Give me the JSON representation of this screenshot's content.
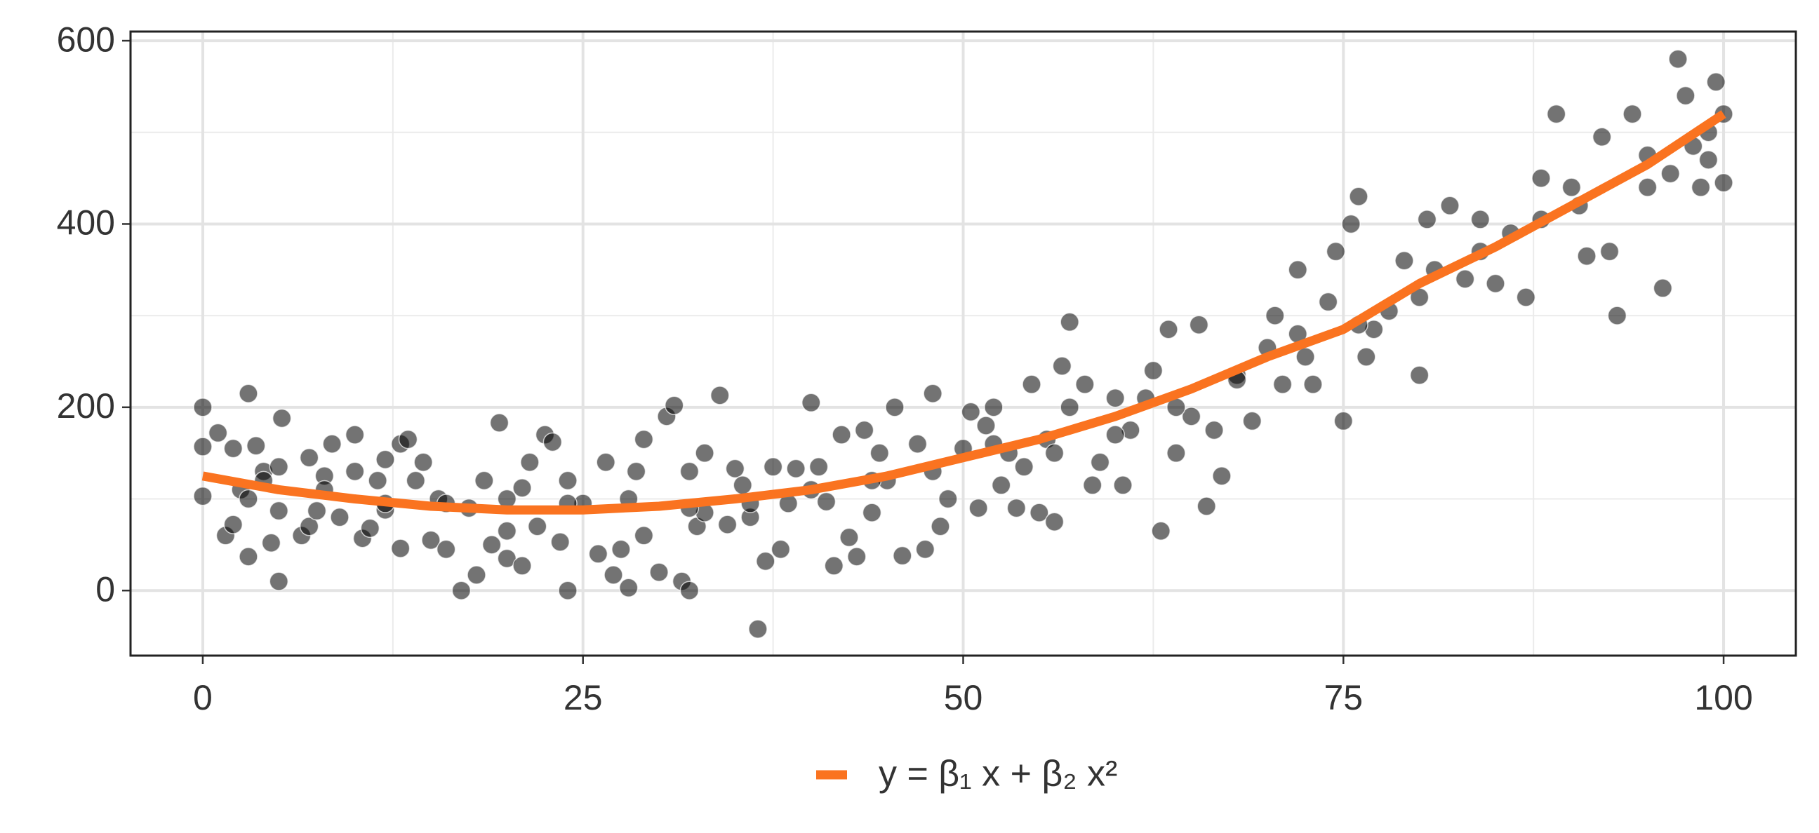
{
  "chart_data": {
    "type": "scatter",
    "xlim": [
      -4.75,
      104.75
    ],
    "ylim": [
      -71,
      610
    ],
    "xticks": [
      0,
      25,
      50,
      75,
      100
    ],
    "yticks": [
      0,
      200,
      400,
      600
    ],
    "grid": true,
    "legend": "bottom",
    "series": [
      {
        "type": "scatter",
        "color": "#000000",
        "x": [
          0,
          0,
          0,
          1,
          1.5,
          2,
          2,
          2.5,
          3,
          3,
          3,
          3.5,
          4,
          4.5,
          5,
          5,
          5,
          5.2,
          6.5,
          7,
          7,
          7.5,
          8,
          8.5,
          9,
          10,
          10,
          10.5,
          11,
          11.5,
          12,
          12,
          13,
          13,
          13.5,
          14,
          14.5,
          15,
          15.5,
          16,
          17,
          17.5,
          18,
          18.5,
          19,
          19.5,
          20,
          20,
          21,
          21,
          21.5,
          22,
          22.5,
          23,
          23.5,
          24,
          24,
          25,
          26,
          26.5,
          27,
          27.5,
          28,
          28.5,
          29,
          29,
          30,
          30.5,
          31,
          31.5,
          32,
          32,
          32.5,
          33,
          33,
          34,
          34.5,
          35,
          35.5,
          36,
          36.5,
          37,
          37.5,
          38,
          38.5,
          39,
          40,
          40.5,
          41,
          41.5,
          42,
          42.5,
          43,
          43.5,
          44,
          44.5,
          45,
          45.5,
          46,
          47,
          47.5,
          48,
          48.5,
          49,
          50,
          50.5,
          51,
          51.5,
          52,
          52.5,
          53,
          53.5,
          54,
          54.5,
          55,
          55.5,
          56,
          56.5,
          57,
          57,
          58,
          58.5,
          59,
          60,
          60.5,
          61,
          62,
          62.5,
          63,
          63.5,
          64,
          65,
          65.5,
          66,
          66.5,
          67,
          68,
          69,
          70,
          70.5,
          71,
          72,
          72.5,
          73,
          74,
          74.5,
          75,
          75.5,
          76,
          76.5,
          77,
          78,
          79,
          80,
          80.5,
          81,
          82,
          83,
          84,
          85,
          86,
          87,
          88,
          89,
          90,
          90.5,
          91,
          92,
          92.5,
          93,
          94,
          95,
          96,
          96.5,
          97,
          97.5,
          98,
          98.5,
          99,
          99.5,
          100,
          100,
          99,
          95,
          88,
          84,
          80,
          76,
          72,
          68,
          64,
          60,
          56,
          52,
          48,
          44,
          40,
          36,
          32,
          28,
          24,
          20,
          16,
          12,
          8,
          4
        ],
        "values": [
          200,
          157,
          103,
          172,
          60,
          155,
          72,
          110,
          37,
          215,
          100,
          158,
          130,
          52,
          135,
          87,
          10,
          188,
          60,
          145,
          70,
          87,
          125,
          160,
          80,
          170,
          130,
          57,
          68,
          120,
          88,
          143,
          160,
          46,
          165,
          120,
          140,
          55,
          100,
          45,
          0,
          90,
          17,
          120,
          50,
          183,
          35,
          65,
          27,
          112,
          140,
          70,
          170,
          162,
          53,
          0,
          120,
          95,
          40,
          140,
          17,
          45,
          3,
          130,
          60,
          165,
          20,
          190,
          202,
          10,
          0,
          130,
          70,
          150,
          85,
          213,
          72,
          133,
          115,
          80,
          -42,
          32,
          135,
          45,
          95,
          133,
          205,
          135,
          97,
          27,
          170,
          58,
          37,
          175,
          85,
          150,
          120,
          200,
          38,
          160,
          45,
          215,
          70,
          100,
          155,
          195,
          90,
          180,
          200,
          115,
          150,
          90,
          135,
          225,
          85,
          165,
          75,
          245,
          293,
          200,
          225,
          115,
          140,
          210,
          115,
          175,
          210,
          240,
          65,
          285,
          150,
          190,
          290,
          92,
          175,
          125,
          235,
          185,
          265,
          300,
          225,
          350,
          255,
          225,
          315,
          370,
          185,
          400,
          430,
          255,
          285,
          305,
          360,
          235,
          405,
          350,
          420,
          340,
          405,
          335,
          390,
          320,
          405,
          520,
          440,
          420,
          365,
          495,
          370,
          300,
          520,
          440,
          330,
          455,
          580,
          540,
          485,
          440,
          500,
          555,
          445,
          520,
          470,
          475,
          450,
          370,
          320,
          290,
          280,
          230,
          200,
          170,
          150,
          160,
          130,
          120,
          110,
          95,
          90,
          100,
          95,
          100,
          95,
          95,
          110,
          120
        ]
      },
      {
        "type": "line",
        "name": "y = β₁ x + β₂ x²",
        "color": "#fa7320",
        "x": [
          0,
          5,
          10,
          15,
          20,
          25,
          30,
          35,
          40,
          45,
          50,
          55,
          60,
          65,
          70,
          75,
          80,
          85,
          90,
          95,
          100
        ],
        "values": [
          125,
          110,
          100,
          92,
          88,
          88,
          92,
          100,
          110,
          125,
          145,
          165,
          190,
          220,
          255,
          285,
          335,
          375,
          420,
          465,
          520
        ]
      }
    ]
  }
}
